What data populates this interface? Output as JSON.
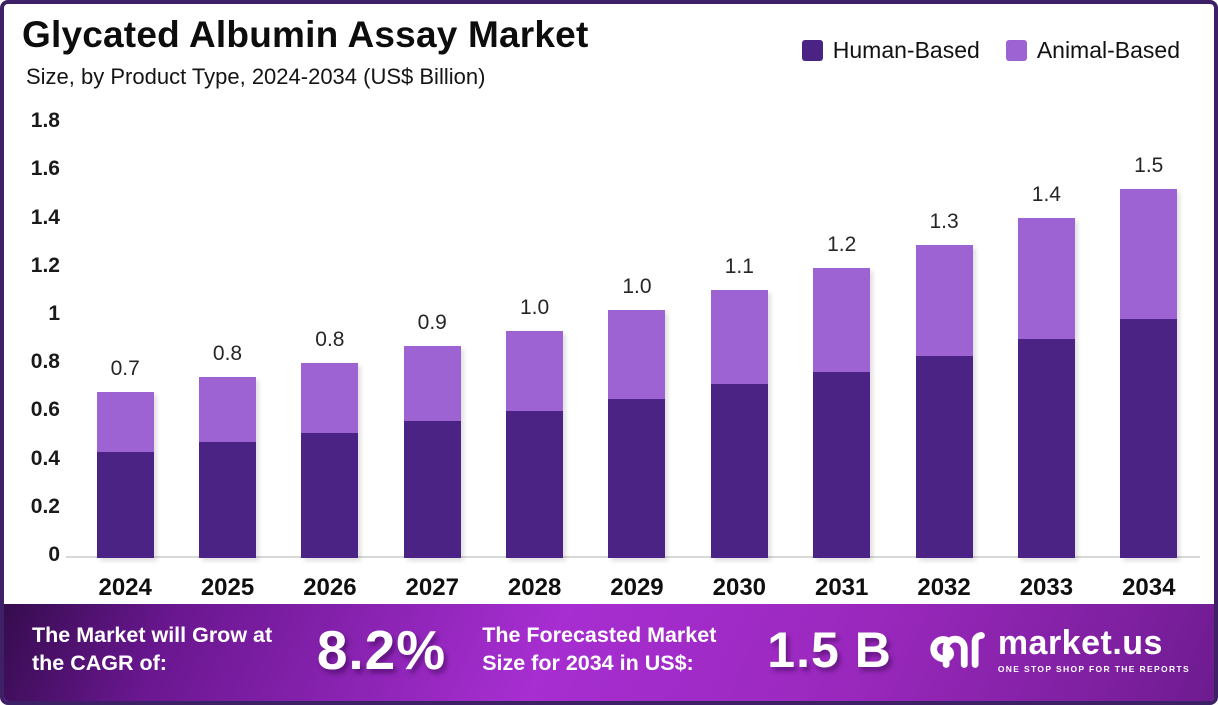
{
  "header": {
    "title": "Glycated Albumin Assay Market",
    "subtitle": "Size, by Product Type, 2024-2034 (US$ Billion)"
  },
  "colors": {
    "human_based": "#4a2385",
    "animal_based": "#9d63d2",
    "frame_border": "#3e2066",
    "banner_purple": "#9a28bd"
  },
  "chart_data": {
    "type": "bar",
    "stacked": true,
    "title": "Glycated Albumin Assay Market Size, by Product Type, 2024-2034 (US$ Billion)",
    "xlabel": "",
    "ylabel": "US$ Billion",
    "ylim": [
      0,
      1.8
    ],
    "ytick_labels": [
      "1.8",
      "1.6",
      "1.4",
      "1.2",
      "1",
      "0.8",
      "0.6",
      "0.4",
      "0.2",
      "0"
    ],
    "ytick_values": [
      1.8,
      1.6,
      1.4,
      1.2,
      1.0,
      0.8,
      0.6,
      0.4,
      0.2,
      0
    ],
    "grid": false,
    "legend_position": "top-right",
    "categories": [
      "2024",
      "2025",
      "2026",
      "2027",
      "2028",
      "2029",
      "2030",
      "2031",
      "2032",
      "2033",
      "2034"
    ],
    "series": [
      {
        "name": "Human-Based",
        "color": "#4a2385",
        "values": [
          0.44,
          0.48,
          0.52,
          0.57,
          0.61,
          0.66,
          0.72,
          0.77,
          0.84,
          0.91,
          0.99
        ]
      },
      {
        "name": "Animal-Based",
        "color": "#9d63d2",
        "values": [
          0.25,
          0.27,
          0.29,
          0.31,
          0.33,
          0.37,
          0.39,
          0.43,
          0.46,
          0.5,
          0.54
        ]
      }
    ],
    "total_labels": [
      "0.7",
      "0.8",
      "0.8",
      "0.9",
      "1.0",
      "1.0",
      "1.1",
      "1.2",
      "1.3",
      "1.4",
      "1.5"
    ]
  },
  "legend": [
    {
      "label": "Human-Based",
      "color": "#4a2385"
    },
    {
      "label": "Animal-Based",
      "color": "#9d63d2"
    }
  ],
  "footer": {
    "cagr_label": "The Market will Grow at the CAGR of:",
    "cagr_value": "8.2%",
    "forecast_label": "The Forecasted Market Size for 2034 in US$:",
    "forecast_value": "1.5 B",
    "brand": {
      "name": "market.us",
      "tagline": "ONE STOP SHOP FOR THE REPORTS"
    }
  }
}
